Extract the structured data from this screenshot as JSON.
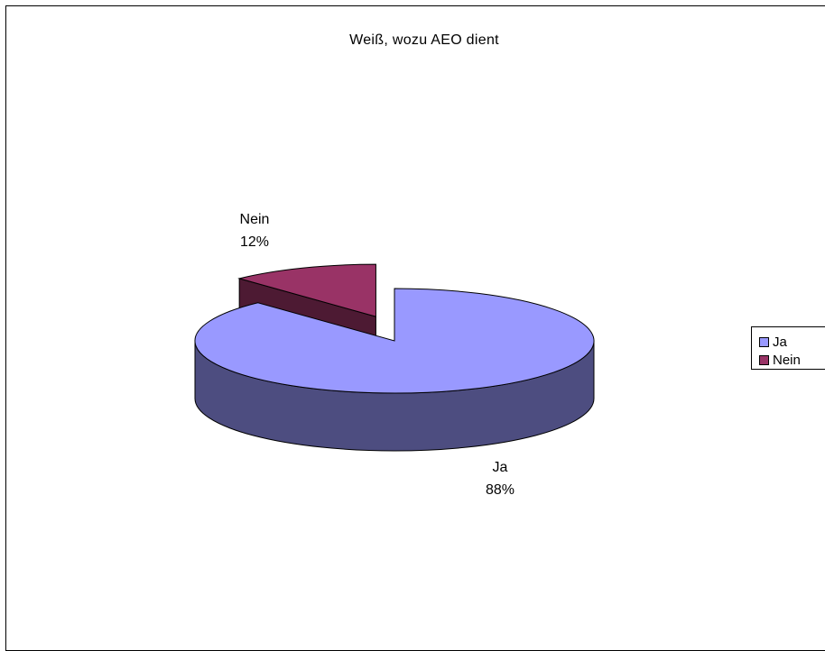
{
  "chart_data": {
    "type": "pie",
    "title": "Weiß, wozu AEO dient",
    "three_d": true,
    "exploded": true,
    "categories": [
      "Ja",
      "Nein"
    ],
    "values": [
      88,
      12
    ],
    "value_unit": "%",
    "data_labels": [
      {
        "category": "Ja",
        "percent": "88%"
      },
      {
        "category": "Nein",
        "percent": "12%"
      }
    ],
    "colors": {
      "Ja": {
        "top": "#9999ff",
        "side": "#4d4d80"
      },
      "Nein": {
        "top": "#993366",
        "side": "#4d1a33"
      }
    },
    "legend": {
      "placement": "right",
      "items": [
        {
          "label": "Ja",
          "color": "#9999ff"
        },
        {
          "label": "Nein",
          "color": "#993366"
        }
      ]
    }
  }
}
